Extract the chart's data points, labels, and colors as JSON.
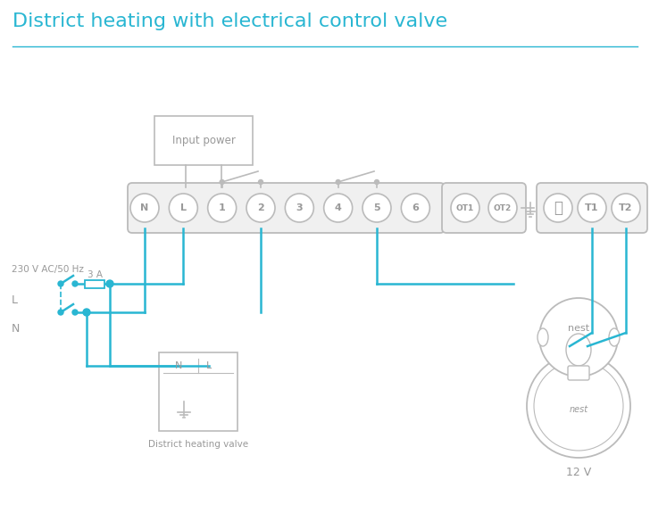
{
  "title": "District heating with electrical control valve",
  "title_color": "#29b6d2",
  "title_fontsize": 16,
  "bg_color": "#ffffff",
  "wire_color": "#29b6d2",
  "text_gray": "#999999",
  "strip_edge": "#bbbbbb",
  "strip_face": "#f0f0f0",
  "terminal_labels": [
    "N",
    "L",
    "1",
    "2",
    "3",
    "4",
    "5",
    "6"
  ],
  "ot_labels": [
    "OT1",
    "OT2"
  ],
  "right_labels": [
    "T1",
    "T2"
  ],
  "label_230": "230 V AC/50 Hz",
  "label_L": "L",
  "label_N": "N",
  "label_3A": "3 A",
  "label_input_power": "Input power",
  "label_district_valve": "District heating valve",
  "label_12V": "12 V",
  "label_nest": "nest"
}
